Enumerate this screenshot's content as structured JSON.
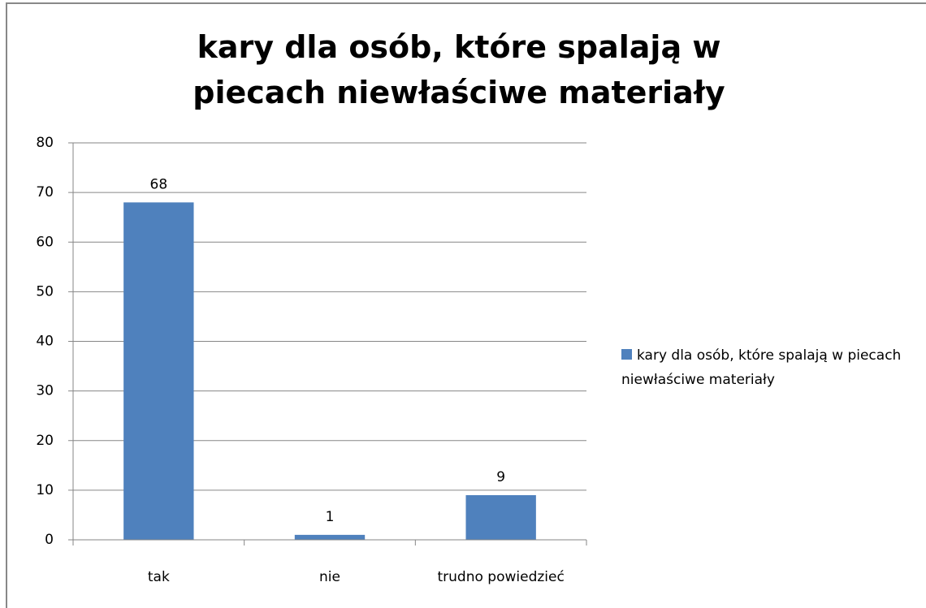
{
  "chart_data": {
    "type": "bar",
    "title": "kary dla osób, które spalają w piecach niewłaściwe materiały",
    "categories": [
      "tak",
      "nie",
      "trudno powiedzieć"
    ],
    "series": [
      {
        "name": "kary dla osób, które spalają w piecach niewłaściwe materiały",
        "color": "#4f81bd",
        "values": [
          68,
          1,
          9
        ]
      }
    ],
    "ylim": [
      0,
      80
    ],
    "yticks": [
      0,
      10,
      20,
      30,
      40,
      50,
      60,
      70,
      80
    ],
    "grid": true,
    "legend": "right"
  }
}
